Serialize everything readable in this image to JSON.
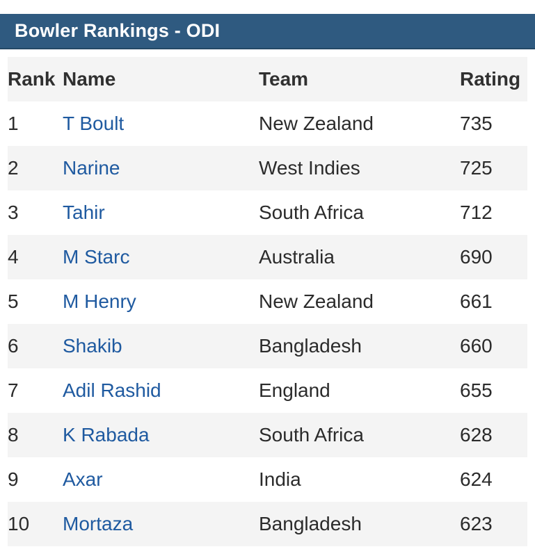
{
  "header": {
    "title": "Bowler Rankings - ODI"
  },
  "table": {
    "columns": [
      "Rank",
      "Name",
      "Team",
      "Rating"
    ],
    "rows": [
      {
        "rank": "1",
        "name": "T Boult",
        "team": "New Zealand",
        "rating": "735"
      },
      {
        "rank": "2",
        "name": "Narine",
        "team": "West Indies",
        "rating": "725"
      },
      {
        "rank": "3",
        "name": "Tahir",
        "team": "South Africa",
        "rating": "712"
      },
      {
        "rank": "4",
        "name": "M Starc",
        "team": "Australia",
        "rating": "690"
      },
      {
        "rank": "5",
        "name": "M Henry",
        "team": "New Zealand",
        "rating": "661"
      },
      {
        "rank": "6",
        "name": "Shakib",
        "team": "Bangladesh",
        "rating": "660"
      },
      {
        "rank": "7",
        "name": "Adil Rashid",
        "team": "England",
        "rating": "655"
      },
      {
        "rank": "8",
        "name": "K Rabada",
        "team": "South Africa",
        "rating": "628"
      },
      {
        "rank": "9",
        "name": "Axar",
        "team": "India",
        "rating": "624"
      },
      {
        "rank": "10",
        "name": "Mortaza",
        "team": "Bangladesh",
        "rating": "623"
      }
    ]
  },
  "colors": {
    "header_bg": "#2f5a80",
    "link": "#1f5aa0",
    "row_shade": "#f4f4f4"
  }
}
